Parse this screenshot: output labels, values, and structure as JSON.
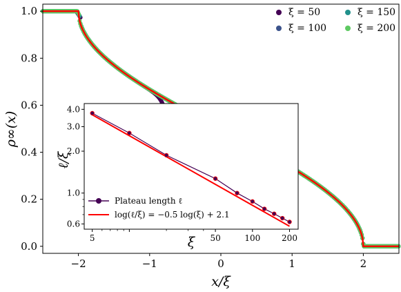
{
  "chart_data": [
    {
      "type": "line",
      "xlabel": "x/ξ",
      "ylabel": "ρ∞(x)",
      "xlim": [
        -2.5,
        2.5
      ],
      "ylim": [
        -0.03,
        1.03
      ],
      "xticks": [
        -2,
        -1,
        0,
        1,
        2
      ],
      "xtick_labels": [
        "−2",
        "−1",
        "0",
        "1",
        "2"
      ],
      "yticks": [
        0.0,
        0.2,
        0.4,
        0.6,
        0.8,
        1.0
      ],
      "ytick_labels": [
        "0.0",
        "0.2",
        "0.4",
        "0.6",
        "0.8",
        "1.0"
      ],
      "grid": false,
      "legend_position": "top-right",
      "plateau_value": 0.5,
      "series": [
        {
          "name": "ξ = 50",
          "xi": 50,
          "color": "#440154",
          "plateau_halfwidth": 0.74,
          "kind": "points"
        },
        {
          "name": "ξ = 100",
          "xi": 100,
          "color": "#3b528b",
          "plateau_halfwidth": 0.52,
          "kind": "points"
        },
        {
          "name": "ξ = 150",
          "xi": 150,
          "color": "#21918c",
          "plateau_halfwidth": 0.43,
          "kind": "points"
        },
        {
          "name": "ξ = 200",
          "xi": 200,
          "color": "#5ec962",
          "plateau_halfwidth": 0.37,
          "kind": "points"
        },
        {
          "name": "",
          "color": "#ff0000",
          "kind": "curve",
          "formula": "arccos(x/2)/π for |x|<2"
        }
      ]
    },
    {
      "type": "scatter",
      "xlabel": "ξ",
      "ylabel": "ℓ/ξ",
      "xscale": "log",
      "yscale": "log",
      "xlim": [
        4.3,
        235
      ],
      "ylim": [
        0.55,
        4.4
      ],
      "xticks": [
        5,
        10,
        50,
        100,
        200
      ],
      "xtick_labels": [
        "5",
        "10",
        "50",
        "100",
        "200"
      ],
      "yticks": [
        0.6,
        1.0,
        2.0,
        3.0,
        4.0
      ],
      "ytick_labels": [
        "0.6",
        "1.0",
        "2.0",
        "3.0",
        "4.0"
      ],
      "legend_position": "bottom-left",
      "series": [
        {
          "name": "Plateau length ℓ",
          "color": "#440154",
          "x": [
            5,
            10,
            20,
            50,
            75,
            100,
            125,
            150,
            175,
            200
          ],
          "y": [
            3.75,
            2.7,
            1.87,
            1.27,
            1.0,
            0.87,
            0.77,
            0.71,
            0.66,
            0.62
          ]
        },
        {
          "name": "log(ℓ/ξ) = −0.5 log(ξ) + 2.1",
          "color": "#ff0000",
          "kind": "fit",
          "slope": -0.5,
          "intercept": 2.1
        }
      ]
    }
  ]
}
